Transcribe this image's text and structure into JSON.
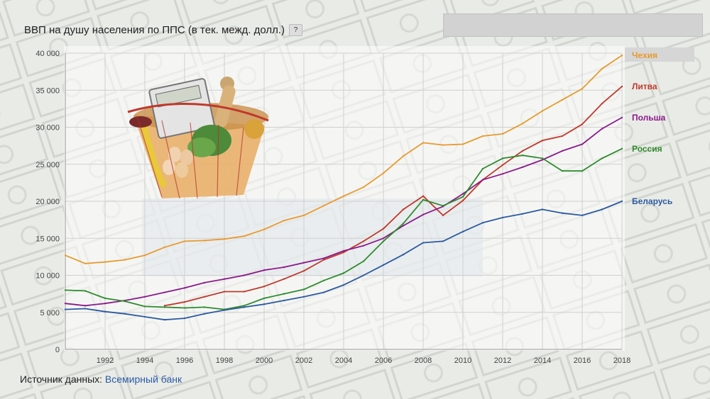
{
  "header": {
    "title": "ВВП на душу населения по ППС (в тек. межд. долл.)",
    "help_label": "?"
  },
  "footer": {
    "source_prefix": "Источник данных:",
    "source_link": "Всемирный банк"
  },
  "colors": {
    "Чехия": "#e89a2c",
    "Литва": "#c0392b",
    "Польша": "#8b1a8b",
    "Россия": "#2e8b2e",
    "Беларусь": "#2c5aa0",
    "grid": "#cfcfcf",
    "highlight": "#d9d9d9"
  },
  "chart_data": {
    "type": "line",
    "title": "ВВП на душу населения по ППС (в тек. межд. долл.)",
    "xlim": [
      1990,
      2018
    ],
    "ylim": [
      0,
      40000
    ],
    "x_ticks": [
      1992,
      1994,
      1996,
      1998,
      2000,
      2002,
      2004,
      2006,
      2008,
      2010,
      2012,
      2014,
      2016,
      2018
    ],
    "x_tick_labels": [
      "1992",
      "1994",
      "1996",
      "1998",
      "2000",
      "2002",
      "2004",
      "2006",
      "2008",
      "2010",
      "2012",
      "2014",
      "2016",
      "2018"
    ],
    "y_ticks": [
      0,
      5000,
      10000,
      15000,
      20000,
      25000,
      30000,
      35000,
      40000
    ],
    "y_tick_labels": [
      "0",
      "5 000",
      "10 000",
      "15 000",
      "20 000",
      "25 000",
      "30 000",
      "35 000",
      "40 000"
    ],
    "grid": true,
    "legend": "right, at line ends",
    "highlighted_series": "Чехия",
    "series": [
      {
        "name": "Чехия",
        "x": [
          1990,
          1991,
          1992,
          1993,
          1994,
          1995,
          1996,
          1997,
          1998,
          1999,
          2000,
          2001,
          2002,
          2003,
          2004,
          2005,
          2006,
          2007,
          2008,
          2009,
          2010,
          2011,
          2012,
          2013,
          2014,
          2015,
          2016,
          2017,
          2018
        ],
        "values": [
          12700,
          11600,
          11800,
          12100,
          12700,
          13800,
          14600,
          14700,
          14900,
          15300,
          16200,
          17400,
          18100,
          19400,
          20700,
          21900,
          23800,
          26100,
          27900,
          27600,
          27700,
          28800,
          29100,
          30500,
          32200,
          33700,
          35200,
          37900,
          39700
        ]
      },
      {
        "name": "Литва",
        "x": [
          1995,
          1996,
          1997,
          1998,
          1999,
          2000,
          2001,
          2002,
          2003,
          2004,
          2005,
          2006,
          2007,
          2008,
          2009,
          2010,
          2011,
          2012,
          2013,
          2014,
          2015,
          2016,
          2017,
          2018
        ],
        "values": [
          5900,
          6400,
          7100,
          7800,
          7800,
          8500,
          9500,
          10600,
          12100,
          13100,
          14600,
          16300,
          18900,
          20700,
          18100,
          20100,
          22900,
          24900,
          26800,
          28200,
          28800,
          30400,
          33200,
          35500
        ]
      },
      {
        "name": "Польша",
        "x": [
          1990,
          1991,
          1992,
          1993,
          1994,
          1995,
          1996,
          1997,
          1998,
          1999,
          2000,
          2001,
          2002,
          2003,
          2004,
          2005,
          2006,
          2007,
          2008,
          2009,
          2010,
          2011,
          2012,
          2013,
          2014,
          2015,
          2016,
          2017,
          2018
        ],
        "values": [
          6200,
          5900,
          6200,
          6600,
          7100,
          7700,
          8300,
          9000,
          9500,
          10000,
          10700,
          11100,
          11700,
          12300,
          13300,
          14000,
          15000,
          16700,
          18200,
          19300,
          21000,
          22900,
          23700,
          24600,
          25600,
          26800,
          27700,
          29800,
          31300
        ]
      },
      {
        "name": "Россия",
        "x": [
          1990,
          1991,
          1992,
          1993,
          1994,
          1995,
          1996,
          1997,
          1998,
          1999,
          2000,
          2001,
          2002,
          2003,
          2004,
          2005,
          2006,
          2007,
          2008,
          2009,
          2010,
          2011,
          2012,
          2013,
          2014,
          2015,
          2016,
          2017,
          2018
        ],
        "values": [
          8000,
          7900,
          6900,
          6500,
          5800,
          5700,
          5600,
          5700,
          5400,
          5900,
          6900,
          7500,
          8100,
          9300,
          10300,
          11900,
          14600,
          17000,
          20200,
          19400,
          20600,
          24400,
          25800,
          26200,
          25800,
          24100,
          24100,
          25800,
          27100
        ]
      },
      {
        "name": "Беларусь",
        "x": [
          1990,
          1991,
          1992,
          1993,
          1994,
          1995,
          1996,
          1997,
          1998,
          1999,
          2000,
          2001,
          2002,
          2003,
          2004,
          2005,
          2006,
          2007,
          2008,
          2009,
          2010,
          2011,
          2012,
          2013,
          2014,
          2015,
          2016,
          2017,
          2018
        ],
        "values": [
          5400,
          5500,
          5100,
          4800,
          4400,
          4000,
          4200,
          4800,
          5300,
          5700,
          6100,
          6600,
          7100,
          7700,
          8700,
          10000,
          11400,
          12800,
          14400,
          14600,
          15900,
          17100,
          17800,
          18300,
          18900,
          18400,
          18100,
          18900,
          20000
        ]
      }
    ]
  }
}
